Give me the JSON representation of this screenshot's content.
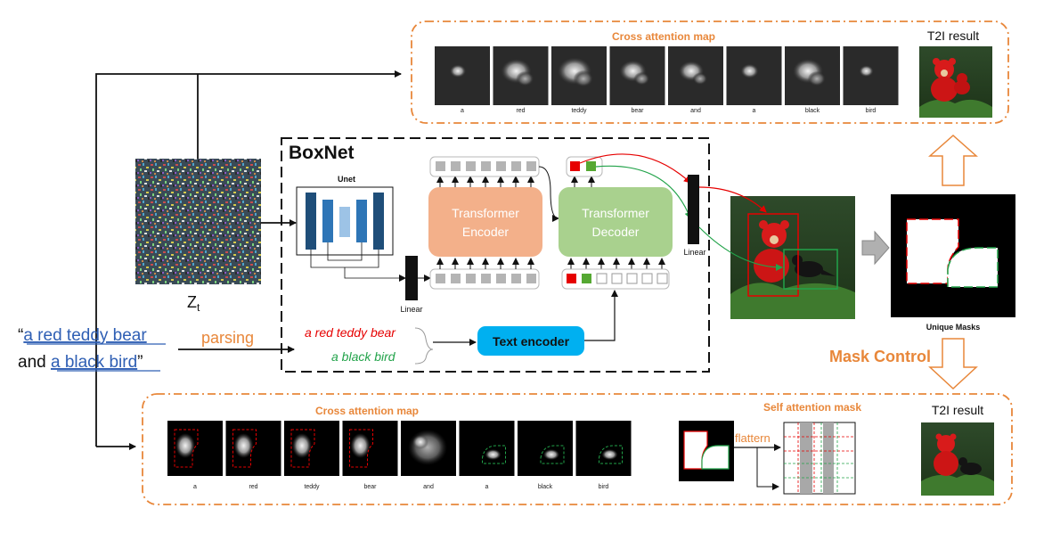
{
  "prompt": {
    "open_quote": "“",
    "part1": "a red teddy bear",
    "and_word": "and",
    "part2": "a black bird",
    "close_quote": "”"
  },
  "parsing_label": "parsing",
  "phrases": {
    "red": "a red teddy bear",
    "green": "a black bird"
  },
  "latent_label": "Z",
  "latent_sub": "t",
  "boxnet": {
    "title": "BoxNet",
    "unet_label": "Unet",
    "encoder_label": [
      "Transformer",
      "Encoder"
    ],
    "decoder_label": [
      "Transformer",
      "Decoder"
    ],
    "linear_label": "Linear",
    "text_encoder_label": "Text encoder"
  },
  "top_panel": {
    "title": "Cross attention map",
    "tokens": [
      "a",
      "red",
      "teddy",
      "bear",
      "and",
      "a",
      "black",
      "bird"
    ],
    "result_label": "T2I result"
  },
  "bottom_panel": {
    "title": "Cross attention map",
    "tokens": [
      "a",
      "red",
      "teddy",
      "bear",
      "and",
      "a",
      "black",
      "bird"
    ],
    "self_attn_title": "Self attention mask",
    "flattern_label": "flattern",
    "result_label": "T2I result"
  },
  "unique_masks_label": "Unique Masks",
  "mask_control_label": "Mask Control",
  "colors": {
    "orange": "#e8873a",
    "red": "#e60000",
    "green": "#22a34a",
    "blue_link": "#2f5fb4",
    "encoder_fill": "#f3b08a",
    "decoder_fill": "#a9d18e",
    "text_encoder_fill": "#00b0f0"
  }
}
